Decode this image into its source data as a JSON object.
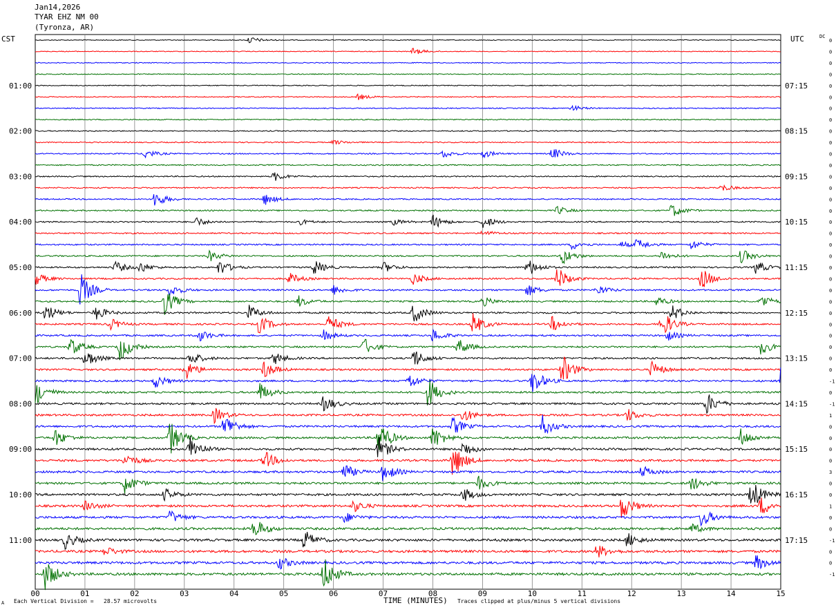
{
  "header": {
    "date": "Jan14,2026",
    "station": "TYAR EHZ NM 00",
    "location": "(Tyronza, AR)"
  },
  "corner_labels": {
    "left": "CST",
    "right": "UTC",
    "dc": "DC"
  },
  "footer": {
    "scale_note": "Each Vertical Division =   28.57 microvolts",
    "xlabel": "TIME (MINUTES)",
    "clip_note": "Traces clipped at plus/minus 5 vertical divisions",
    "mark": "A"
  },
  "colors": {
    "cycle": [
      "#000000",
      "#ff0000",
      "#0000ff",
      "#007000"
    ],
    "grid": "#808080"
  },
  "chart_data": {
    "type": "line",
    "title": "",
    "xlabel": "TIME (MINUTES)",
    "xlim": [
      0,
      15
    ],
    "x_ticks": [
      "00",
      "01",
      "02",
      "03",
      "04",
      "05",
      "06",
      "07",
      "08",
      "09",
      "10",
      "11",
      "12",
      "13",
      "14",
      "15"
    ],
    "rows_per_hour": 4,
    "row_count": 48,
    "left_hour_labels": [
      "01:00",
      "02:00",
      "03:00",
      "04:00",
      "05:00",
      "06:00",
      "07:00",
      "08:00",
      "09:00",
      "10:00",
      "11:00"
    ],
    "right_hour_labels": [
      "07:15",
      "08:15",
      "09:15",
      "10:15",
      "11:15",
      "12:15",
      "13:15",
      "14:15",
      "15:15",
      "16:15",
      "17:15"
    ],
    "dc_offsets": [
      "0",
      "0",
      "0",
      "0",
      "0",
      "0",
      "0",
      "0",
      "0",
      "0",
      "0",
      "0",
      "0",
      "0",
      "0",
      "0",
      "0",
      "0",
      "0",
      "0",
      "0",
      "0",
      "0",
      "0",
      "0",
      "0",
      "0",
      "0",
      "0",
      "0",
      "-1",
      "0",
      "-1",
      "1",
      "0",
      "0",
      "0",
      "0",
      "3",
      "0",
      "0",
      "1",
      "0",
      "0",
      "-1",
      "0",
      "0",
      "-1"
    ],
    "trace_activity": [
      {
        "row": 0,
        "events": [
          [
            4.3,
            0.6
          ]
        ]
      },
      {
        "row": 1,
        "events": [
          [
            7.6,
            0.6
          ]
        ]
      },
      {
        "row": 5,
        "events": [
          [
            6.5,
            0.5
          ]
        ]
      },
      {
        "row": 6,
        "events": [
          [
            10.8,
            0.5
          ]
        ]
      },
      {
        "row": 9,
        "events": [
          [
            6.0,
            0.4
          ]
        ]
      },
      {
        "row": 10,
        "events": [
          [
            2.2,
            0.8
          ],
          [
            8.2,
            0.7
          ],
          [
            9.0,
            0.7
          ],
          [
            10.4,
            1.0
          ]
        ]
      },
      {
        "row": 12,
        "events": [
          [
            4.8,
            0.8
          ]
        ]
      },
      {
        "row": 13,
        "events": [
          [
            13.8,
            0.6
          ]
        ]
      },
      {
        "row": 14,
        "events": [
          [
            2.4,
            1.4
          ],
          [
            4.6,
            1.0
          ]
        ]
      },
      {
        "row": 15,
        "events": [
          [
            10.5,
            0.7
          ],
          [
            12.8,
            1.2
          ]
        ]
      },
      {
        "row": 16,
        "events": [
          [
            3.2,
            0.9
          ],
          [
            5.3,
            0.5
          ],
          [
            7.2,
            0.5
          ],
          [
            8.0,
            1.2
          ],
          [
            9.0,
            1.1
          ]
        ]
      },
      {
        "row": 17,
        "events": [
          [
            9.0,
            0.5
          ]
        ]
      },
      {
        "row": 18,
        "events": [
          [
            10.8,
            0.8
          ],
          [
            11.8,
            0.5
          ],
          [
            12.1,
            0.9
          ],
          [
            13.2,
            0.8
          ]
        ]
      },
      {
        "row": 19,
        "events": [
          [
            3.5,
            0.9
          ],
          [
            10.6,
            1.4
          ],
          [
            12.6,
            0.8
          ],
          [
            14.2,
            1.2
          ]
        ]
      },
      {
        "row": 20,
        "events": [
          [
            1.6,
            1.0
          ],
          [
            2.1,
            0.9
          ],
          [
            3.7,
            1.3
          ],
          [
            5.6,
            1.3
          ],
          [
            7.0,
            0.9
          ],
          [
            9.9,
            1.6
          ],
          [
            14.5,
            1.1
          ]
        ]
      },
      {
        "row": 21,
        "events": [
          [
            0.0,
            1.1
          ],
          [
            5.1,
            1.0
          ],
          [
            7.6,
            1.0
          ],
          [
            10.5,
            2.0
          ],
          [
            13.4,
            1.9
          ]
        ]
      },
      {
        "row": 22,
        "events": [
          [
            0.9,
            3.0
          ],
          [
            2.7,
            1.1
          ],
          [
            6.0,
            0.8
          ],
          [
            9.9,
            1.0
          ],
          [
            11.3,
            0.9
          ]
        ]
      },
      {
        "row": 23,
        "events": [
          [
            2.6,
            2.2
          ],
          [
            5.3,
            0.9
          ],
          [
            9.0,
            0.8
          ],
          [
            12.5,
            0.8
          ],
          [
            14.6,
            1.2
          ]
        ]
      },
      {
        "row": 24,
        "events": [
          [
            0.2,
            1.5
          ],
          [
            1.2,
            1.3
          ],
          [
            4.3,
            1.2
          ],
          [
            7.6,
            1.8
          ],
          [
            12.8,
            1.4
          ]
        ]
      },
      {
        "row": 25,
        "events": [
          [
            1.5,
            1.0
          ],
          [
            4.5,
            1.6
          ],
          [
            5.9,
            1.5
          ],
          [
            8.8,
            1.9
          ],
          [
            10.4,
            1.3
          ],
          [
            12.6,
            2.4
          ]
        ]
      },
      {
        "row": 26,
        "events": [
          [
            3.3,
            1.0
          ],
          [
            5.8,
            0.9
          ],
          [
            8.0,
            1.1
          ],
          [
            12.7,
            0.9
          ]
        ]
      },
      {
        "row": 27,
        "events": [
          [
            0.7,
            1.6
          ],
          [
            1.7,
            2.5
          ],
          [
            6.6,
            1.5
          ],
          [
            8.5,
            1.4
          ],
          [
            14.6,
            1.3
          ]
        ]
      },
      {
        "row": 28,
        "events": [
          [
            1.0,
            1.6
          ],
          [
            3.1,
            1.3
          ],
          [
            4.8,
            1.1
          ],
          [
            7.6,
            1.7
          ]
        ]
      },
      {
        "row": 29,
        "events": [
          [
            3.0,
            1.9
          ],
          [
            4.6,
            1.5
          ],
          [
            10.6,
            2.6
          ],
          [
            12.4,
            1.4
          ]
        ]
      },
      {
        "row": 30,
        "events": [
          [
            2.4,
            1.2
          ],
          [
            7.5,
            1.4
          ],
          [
            10.0,
            2.2
          ],
          [
            15.0,
            2.6
          ]
        ]
      },
      {
        "row": 31,
        "events": [
          [
            0.0,
            2.2
          ],
          [
            4.5,
            1.7
          ],
          [
            7.9,
            2.6
          ]
        ]
      },
      {
        "row": 32,
        "events": [
          [
            5.8,
            1.4
          ],
          [
            13.5,
            1.9
          ]
        ]
      },
      {
        "row": 33,
        "events": [
          [
            3.6,
            1.3
          ],
          [
            8.6,
            1.2
          ],
          [
            11.9,
            1.1
          ]
        ]
      },
      {
        "row": 34,
        "events": [
          [
            3.8,
            2.2
          ],
          [
            8.4,
            1.5
          ],
          [
            10.2,
            1.8
          ]
        ]
      },
      {
        "row": 35,
        "events": [
          [
            0.4,
            1.4
          ],
          [
            2.7,
            3.0
          ],
          [
            6.9,
            3.0
          ],
          [
            8.0,
            2.0
          ],
          [
            14.2,
            1.5
          ]
        ]
      },
      {
        "row": 36,
        "events": [
          [
            3.1,
            2.4
          ],
          [
            6.9,
            2.0
          ],
          [
            8.6,
            1.3
          ]
        ]
      },
      {
        "row": 37,
        "events": [
          [
            1.8,
            1.2
          ],
          [
            4.6,
            1.6
          ],
          [
            8.4,
            3.0
          ]
        ]
      },
      {
        "row": 38,
        "events": [
          [
            6.2,
            1.4
          ],
          [
            7.0,
            1.7
          ],
          [
            12.2,
            1.0
          ]
        ]
      },
      {
        "row": 39,
        "events": [
          [
            1.8,
            1.6
          ],
          [
            8.9,
            1.2
          ],
          [
            13.2,
            1.2
          ]
        ]
      },
      {
        "row": 40,
        "events": [
          [
            2.6,
            1.0
          ],
          [
            8.6,
            1.2
          ],
          [
            14.4,
            2.6
          ]
        ]
      },
      {
        "row": 41,
        "events": [
          [
            1.0,
            0.9
          ],
          [
            6.4,
            1.0
          ],
          [
            11.8,
            2.2
          ],
          [
            14.6,
            1.6
          ]
        ]
      },
      {
        "row": 42,
        "events": [
          [
            2.7,
            1.1
          ],
          [
            6.2,
            0.9
          ],
          [
            13.4,
            1.6
          ]
        ]
      },
      {
        "row": 43,
        "events": [
          [
            4.4,
            1.8
          ],
          [
            13.2,
            0.8
          ]
        ]
      },
      {
        "row": 44,
        "events": [
          [
            0.6,
            1.4
          ],
          [
            5.4,
            1.7
          ],
          [
            11.9,
            1.2
          ]
        ]
      },
      {
        "row": 45,
        "events": [
          [
            1.4,
            0.8
          ],
          [
            11.3,
            1.2
          ]
        ]
      },
      {
        "row": 46,
        "events": [
          [
            4.9,
            1.1
          ],
          [
            14.5,
            1.3
          ]
        ]
      },
      {
        "row": 47,
        "events": [
          [
            0.2,
            2.6
          ],
          [
            5.8,
            3.0
          ]
        ]
      }
    ]
  }
}
